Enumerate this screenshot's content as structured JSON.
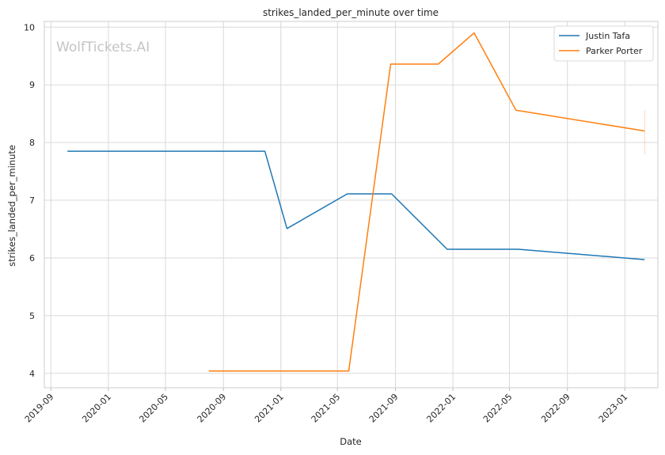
{
  "chart_data": {
    "type": "line",
    "title": "strikes_landed_per_minute over time",
    "xlabel": "Date",
    "ylabel": "strikes_landed_per_minute",
    "watermark": "WolfTickets.AI",
    "xlim": [
      "2019-08-18",
      "2023-03-12"
    ],
    "ylim": [
      3.75,
      10.1
    ],
    "x_ticks": [
      "2019-09",
      "2020-01",
      "2020-05",
      "2020-09",
      "2021-01",
      "2021-05",
      "2021-09",
      "2022-01",
      "2022-05",
      "2022-09",
      "2023-01"
    ],
    "y_ticks": [
      4,
      5,
      6,
      7,
      8,
      9,
      10
    ],
    "grid": true,
    "legend_position": "top-right",
    "series": [
      {
        "name": "Justin Tafa",
        "color": "#1f77b4",
        "points": [
          {
            "x": "2019-10-06",
            "y": 7.85
          },
          {
            "x": "2020-11-28",
            "y": 7.85
          },
          {
            "x": "2021-01-14",
            "y": 6.51
          },
          {
            "x": "2021-05-22",
            "y": 7.11
          },
          {
            "x": "2021-08-24",
            "y": 7.11
          },
          {
            "x": "2021-12-20",
            "y": 6.15
          },
          {
            "x": "2022-05-20",
            "y": 6.15
          },
          {
            "x": "2023-02-12",
            "y": 5.97
          }
        ]
      },
      {
        "name": "Parker Porter",
        "color": "#ff7f0e",
        "points": [
          {
            "x": "2020-08-01",
            "y": 4.04
          },
          {
            "x": "2021-05-25",
            "y": 4.04
          },
          {
            "x": "2021-08-22",
            "y": 9.36
          },
          {
            "x": "2021-12-01",
            "y": 9.36
          },
          {
            "x": "2022-02-15",
            "y": 9.9
          },
          {
            "x": "2022-05-15",
            "y": 8.56
          },
          {
            "x": "2023-02-12",
            "y": 8.2
          }
        ],
        "error_bar": {
          "x": "2023-02-12",
          "low": 7.8,
          "high": 8.56
        }
      }
    ]
  }
}
